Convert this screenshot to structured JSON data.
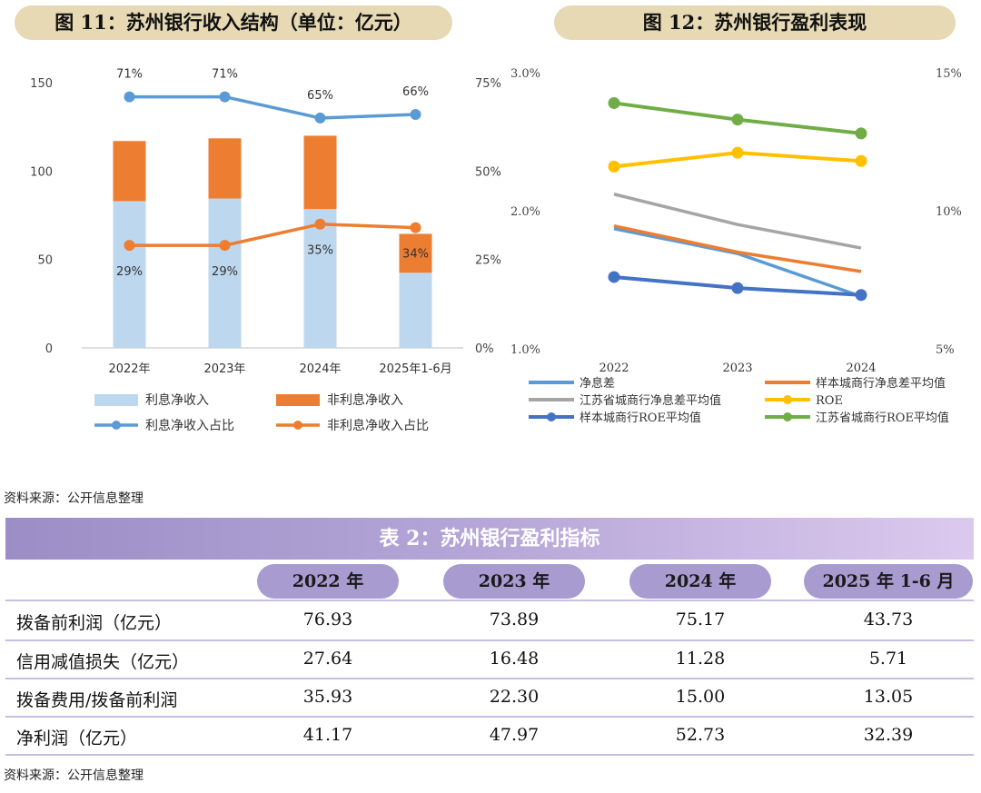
{
  "fig11": {
    "title": "图 11：苏州银行收入结构（单位：亿元）",
    "chart_data": {
      "type": "bar",
      "stacked": true,
      "categories": [
        "2022年",
        "2023年",
        "2024年",
        "2025年1-6月"
      ],
      "series": [
        {
          "name": "利息净收入",
          "kind": "bar",
          "axis": "left",
          "color": "#bdd7ee",
          "values": [
            83,
            84.5,
            78.5,
            42.5
          ]
        },
        {
          "name": "非利息净收入",
          "kind": "bar",
          "axis": "left",
          "color": "#ed7d31",
          "values": [
            34,
            34,
            41.5,
            22
          ]
        },
        {
          "name": "利息净收入占比",
          "kind": "line",
          "axis": "right",
          "color": "#5b9bd5",
          "values": [
            71,
            71,
            65,
            66
          ],
          "labels": [
            "71%",
            "71%",
            "65%",
            "66%"
          ]
        },
        {
          "name": "非利息净收入占比",
          "kind": "line",
          "axis": "right",
          "color": "#ed7d31",
          "values": [
            29,
            29,
            35,
            34
          ],
          "labels": [
            "29%",
            "29%",
            "35%",
            "34%"
          ]
        }
      ],
      "ylim": [
        0,
        150
      ],
      "yticks": [
        "0",
        "50",
        "100",
        "150"
      ],
      "y2lim": [
        0,
        75
      ],
      "y2ticks": [
        "0%",
        "25%",
        "50%",
        "75%"
      ],
      "legend": "bottom"
    }
  },
  "fig12": {
    "title": "图 12：苏州银行盈利表现",
    "chart_data": {
      "type": "line",
      "categories": [
        "2022",
        "2023",
        "2024"
      ],
      "series": [
        {
          "name": "净息差",
          "axis": "left",
          "color": "#5b9bd5",
          "values": [
            1.87,
            1.69,
            1.38
          ]
        },
        {
          "name": "样本城商行净息差平均值",
          "axis": "left",
          "color": "#ed7d31",
          "values": [
            1.89,
            1.7,
            1.56
          ]
        },
        {
          "name": "江苏省城商行净息差平均值",
          "axis": "left",
          "color": "#a5a5a5",
          "values": [
            2.12,
            1.9,
            1.73
          ]
        },
        {
          "name": "ROE",
          "axis": "right",
          "color": "#ffc000",
          "values": [
            11.6,
            12.1,
            11.8
          ]
        },
        {
          "name": "样本城商行ROE平均值",
          "axis": "right",
          "color": "#4472c4",
          "values": [
            7.6,
            7.2,
            6.95
          ]
        },
        {
          "name": "江苏省城商行ROE平均值",
          "axis": "right",
          "color": "#70ad47",
          "values": [
            13.9,
            13.3,
            12.8
          ]
        }
      ],
      "ylim": [
        1.0,
        3.0
      ],
      "yticks": [
        "1.0%",
        "2.0%",
        "3.0%"
      ],
      "y2lim": [
        5,
        15
      ],
      "y2ticks": [
        "5%",
        "10%",
        "15%"
      ],
      "legend": "bottom"
    }
  },
  "source1": "资料来源：公开信息整理",
  "table": {
    "title": "表 2：苏州银行盈利指标",
    "headers": [
      "2022 年",
      "2023 年",
      "2024 年",
      "2025 年 1-6 月"
    ],
    "rows": [
      {
        "label": "拨备前利润（亿元）",
        "values": [
          "76.93",
          "73.89",
          "75.17",
          "43.73"
        ]
      },
      {
        "label": "信用减值损失（亿元）",
        "values": [
          "27.64",
          "16.48",
          "11.28",
          "5.71"
        ]
      },
      {
        "label": "拨备费用/拨备前利润",
        "values": [
          "35.93",
          "22.30",
          "15.00",
          "13.05"
        ]
      },
      {
        "label": "净利润（亿元）",
        "values": [
          "41.17",
          "47.97",
          "52.73",
          "32.39"
        ]
      }
    ]
  },
  "source2": "资料来源：公开信息整理"
}
